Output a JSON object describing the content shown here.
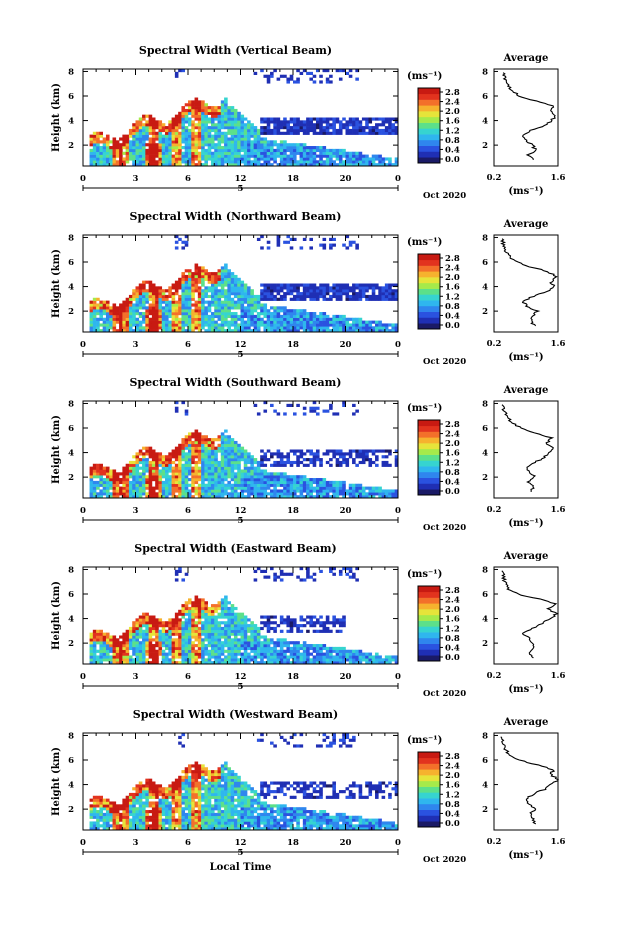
{
  "colors": {
    "colormap": [
      "#1a1a66",
      "#1f2fb4",
      "#2a52e0",
      "#2f86ee",
      "#2fb6ee",
      "#36d4d0",
      "#5ce08a",
      "#a6ea4a",
      "#e6e43a",
      "#f6b22e",
      "#f3702a",
      "#e2331e",
      "#c81a12"
    ],
    "frame": "#000000",
    "background": "#ffffff"
  },
  "chart_data": [
    {
      "type": "heatmap",
      "title": "Spectral Width (Vertical Beam)",
      "ylabel": "Height (km)",
      "yticks": [
        "2",
        "4",
        "6",
        "8"
      ],
      "ylim": [
        0.3,
        8.2
      ],
      "xticks": [
        "0",
        "3",
        "6",
        "12",
        "18",
        "20",
        "0"
      ],
      "xlim": [
        0,
        24
      ],
      "date_marker": "5",
      "date_label": "Oct 2020",
      "colorbar": {
        "unit": "(ms⁻¹)",
        "ticks": [
          "2.8",
          "2.4",
          "2.0",
          "1.6",
          "1.2",
          "0.8",
          "0.4",
          "0.0"
        ],
        "range": [
          0,
          2.8
        ]
      },
      "profile": {
        "title": "Average",
        "yticks": [
          "2",
          "4",
          "6",
          "8"
        ],
        "xticks": [
          "0.2",
          "1.6"
        ],
        "xlabel": "(ms⁻¹)",
        "xlim": [
          0.2,
          1.6
        ],
        "ylim": [
          0.3,
          8.2
        ],
        "height": [
          0.8,
          1.2,
          1.6,
          2.0,
          2.4,
          2.8,
          3.2,
          3.6,
          4.0,
          4.4,
          4.8,
          5.2,
          5.6,
          6.0,
          6.4,
          6.8,
          7.2,
          7.6,
          8.0
        ],
        "width": [
          1.05,
          0.95,
          1.1,
          1.05,
          0.9,
          0.8,
          1.0,
          1.3,
          1.45,
          1.55,
          1.4,
          1.5,
          1.1,
          0.75,
          0.6,
          0.5,
          0.45,
          0.42,
          0.4
        ]
      }
    },
    {
      "type": "heatmap",
      "title": "Spectral Width (Northward Beam)",
      "ylabel": "Height (km)",
      "yticks": [
        "2",
        "4",
        "6",
        "8"
      ],
      "ylim": [
        0.3,
        8.2
      ],
      "xticks": [
        "0",
        "3",
        "6",
        "12",
        "18",
        "20",
        "0"
      ],
      "xlim": [
        0,
        24
      ],
      "date_marker": "5",
      "date_label": "Oct 2020",
      "colorbar": {
        "unit": "(ms⁻¹)",
        "ticks": [
          "2.8",
          "2.4",
          "2.0",
          "1.6",
          "1.2",
          "0.8",
          "0.4",
          "0.0"
        ],
        "range": [
          0,
          2.8
        ]
      },
      "profile": {
        "title": "Average",
        "yticks": [
          "2",
          "4",
          "6",
          "8"
        ],
        "xticks": [
          "0.2",
          "1.6"
        ],
        "xlabel": "(ms⁻¹)",
        "xlim": [
          0.2,
          1.6
        ],
        "ylim": [
          0.3,
          8.2
        ],
        "height": [
          0.8,
          1.2,
          1.6,
          2.0,
          2.4,
          2.8,
          3.2,
          3.6,
          4.0,
          4.4,
          4.8,
          5.2,
          5.6,
          6.0,
          6.4,
          6.8,
          7.2,
          7.6,
          8.0
        ],
        "width": [
          1.1,
          1.0,
          1.05,
          1.15,
          0.9,
          0.85,
          1.05,
          1.35,
          1.5,
          1.45,
          1.55,
          1.4,
          1.0,
          0.7,
          0.55,
          0.45,
          0.42,
          0.4,
          0.38
        ]
      }
    },
    {
      "type": "heatmap",
      "title": "Spectral Width (Southward Beam)",
      "ylabel": "Height (km)",
      "yticks": [
        "2",
        "4",
        "6",
        "8"
      ],
      "ylim": [
        0.3,
        8.2
      ],
      "xticks": [
        "0",
        "3",
        "6",
        "12",
        "18",
        "20",
        "0"
      ],
      "xlim": [
        0,
        24
      ],
      "date_marker": "5",
      "date_label": "Oct 2020",
      "colorbar": {
        "unit": "(ms⁻¹)",
        "ticks": [
          "2.8",
          "2.4",
          "2.0",
          "1.6",
          "1.2",
          "0.8",
          "0.4",
          "0.0"
        ],
        "range": [
          0,
          2.8
        ]
      },
      "profile": {
        "title": "Average",
        "yticks": [
          "2",
          "4",
          "6",
          "8"
        ],
        "xticks": [
          "0.2",
          "1.6"
        ],
        "xlabel": "(ms⁻¹)",
        "xlim": [
          0.2,
          1.6
        ],
        "ylim": [
          0.3,
          8.2
        ],
        "height": [
          0.8,
          1.2,
          1.6,
          2.0,
          2.4,
          2.8,
          3.2,
          3.6,
          4.0,
          4.4,
          4.8,
          5.2,
          5.6,
          6.0,
          6.4,
          6.8,
          7.2,
          7.6,
          8.0
        ],
        "width": [
          1.0,
          1.05,
          0.95,
          1.1,
          1.0,
          0.9,
          1.1,
          1.3,
          1.4,
          1.5,
          1.35,
          1.45,
          1.1,
          0.8,
          0.6,
          0.5,
          0.45,
          0.4,
          0.38
        ]
      }
    },
    {
      "type": "heatmap",
      "title": "Spectral Width (Eastward Beam)",
      "ylabel": "Height (km)",
      "yticks": [
        "2",
        "4",
        "6",
        "8"
      ],
      "ylim": [
        0.3,
        8.2
      ],
      "xticks": [
        "0",
        "3",
        "6",
        "12",
        "18",
        "20",
        "0"
      ],
      "xlim": [
        0,
        24
      ],
      "date_marker": "5",
      "date_label": "Oct 2020",
      "colorbar": {
        "unit": "(ms⁻¹)",
        "ticks": [
          "2.8",
          "2.4",
          "2.0",
          "1.6",
          "1.2",
          "0.8",
          "0.4",
          "0.0"
        ],
        "range": [
          0,
          2.8
        ]
      },
      "profile": {
        "title": "Average",
        "yticks": [
          "2",
          "4",
          "6",
          "8"
        ],
        "xticks": [
          "0.2",
          "1.6"
        ],
        "xlabel": "(ms⁻¹)",
        "xlim": [
          0.2,
          1.6
        ],
        "ylim": [
          0.3,
          8.2
        ],
        "height": [
          0.8,
          1.2,
          1.6,
          2.0,
          2.4,
          2.8,
          3.2,
          3.6,
          4.0,
          4.4,
          4.8,
          5.2,
          5.6,
          6.0,
          6.4,
          6.8,
          7.2,
          7.6,
          8.0
        ],
        "width": [
          1.05,
          1.0,
          1.1,
          1.05,
          0.95,
          0.85,
          1.05,
          1.25,
          1.45,
          1.55,
          1.4,
          1.55,
          1.2,
          0.7,
          0.5,
          0.45,
          0.42,
          0.4,
          0.38
        ]
      }
    },
    {
      "type": "heatmap",
      "title": "Spectral Width (Westward Beam)",
      "ylabel": "Height (km)",
      "yticks": [
        "2",
        "4",
        "6",
        "8"
      ],
      "ylim": [
        0.3,
        8.2
      ],
      "xticks": [
        "0",
        "3",
        "6",
        "12",
        "18",
        "20",
        "0"
      ],
      "xlim": [
        0,
        24
      ],
      "date_marker": "5",
      "date_label": "Oct 2020",
      "xlabel": "Local Time",
      "colorbar": {
        "unit": "(ms⁻¹)",
        "ticks": [
          "2.8",
          "2.4",
          "2.0",
          "1.6",
          "1.2",
          "0.8",
          "0.4",
          "0.0"
        ],
        "range": [
          0,
          2.8
        ]
      },
      "profile": {
        "title": "Average",
        "yticks": [
          "2",
          "4",
          "6",
          "8"
        ],
        "xticks": [
          "0.2",
          "1.6"
        ],
        "xlabel": "(ms⁻¹)",
        "xlim": [
          0.2,
          1.6
        ],
        "ylim": [
          0.3,
          8.2
        ],
        "height": [
          0.8,
          1.2,
          1.6,
          2.0,
          2.4,
          2.8,
          3.2,
          3.6,
          4.0,
          4.4,
          4.8,
          5.2,
          5.6,
          6.0,
          6.4,
          6.8,
          7.2,
          7.6,
          8.0
        ],
        "width": [
          1.1,
          1.05,
          1.0,
          1.1,
          0.95,
          0.9,
          1.05,
          1.3,
          1.45,
          1.6,
          1.45,
          1.5,
          1.15,
          0.75,
          0.55,
          0.45,
          0.4,
          0.38,
          0.36
        ]
      }
    }
  ]
}
